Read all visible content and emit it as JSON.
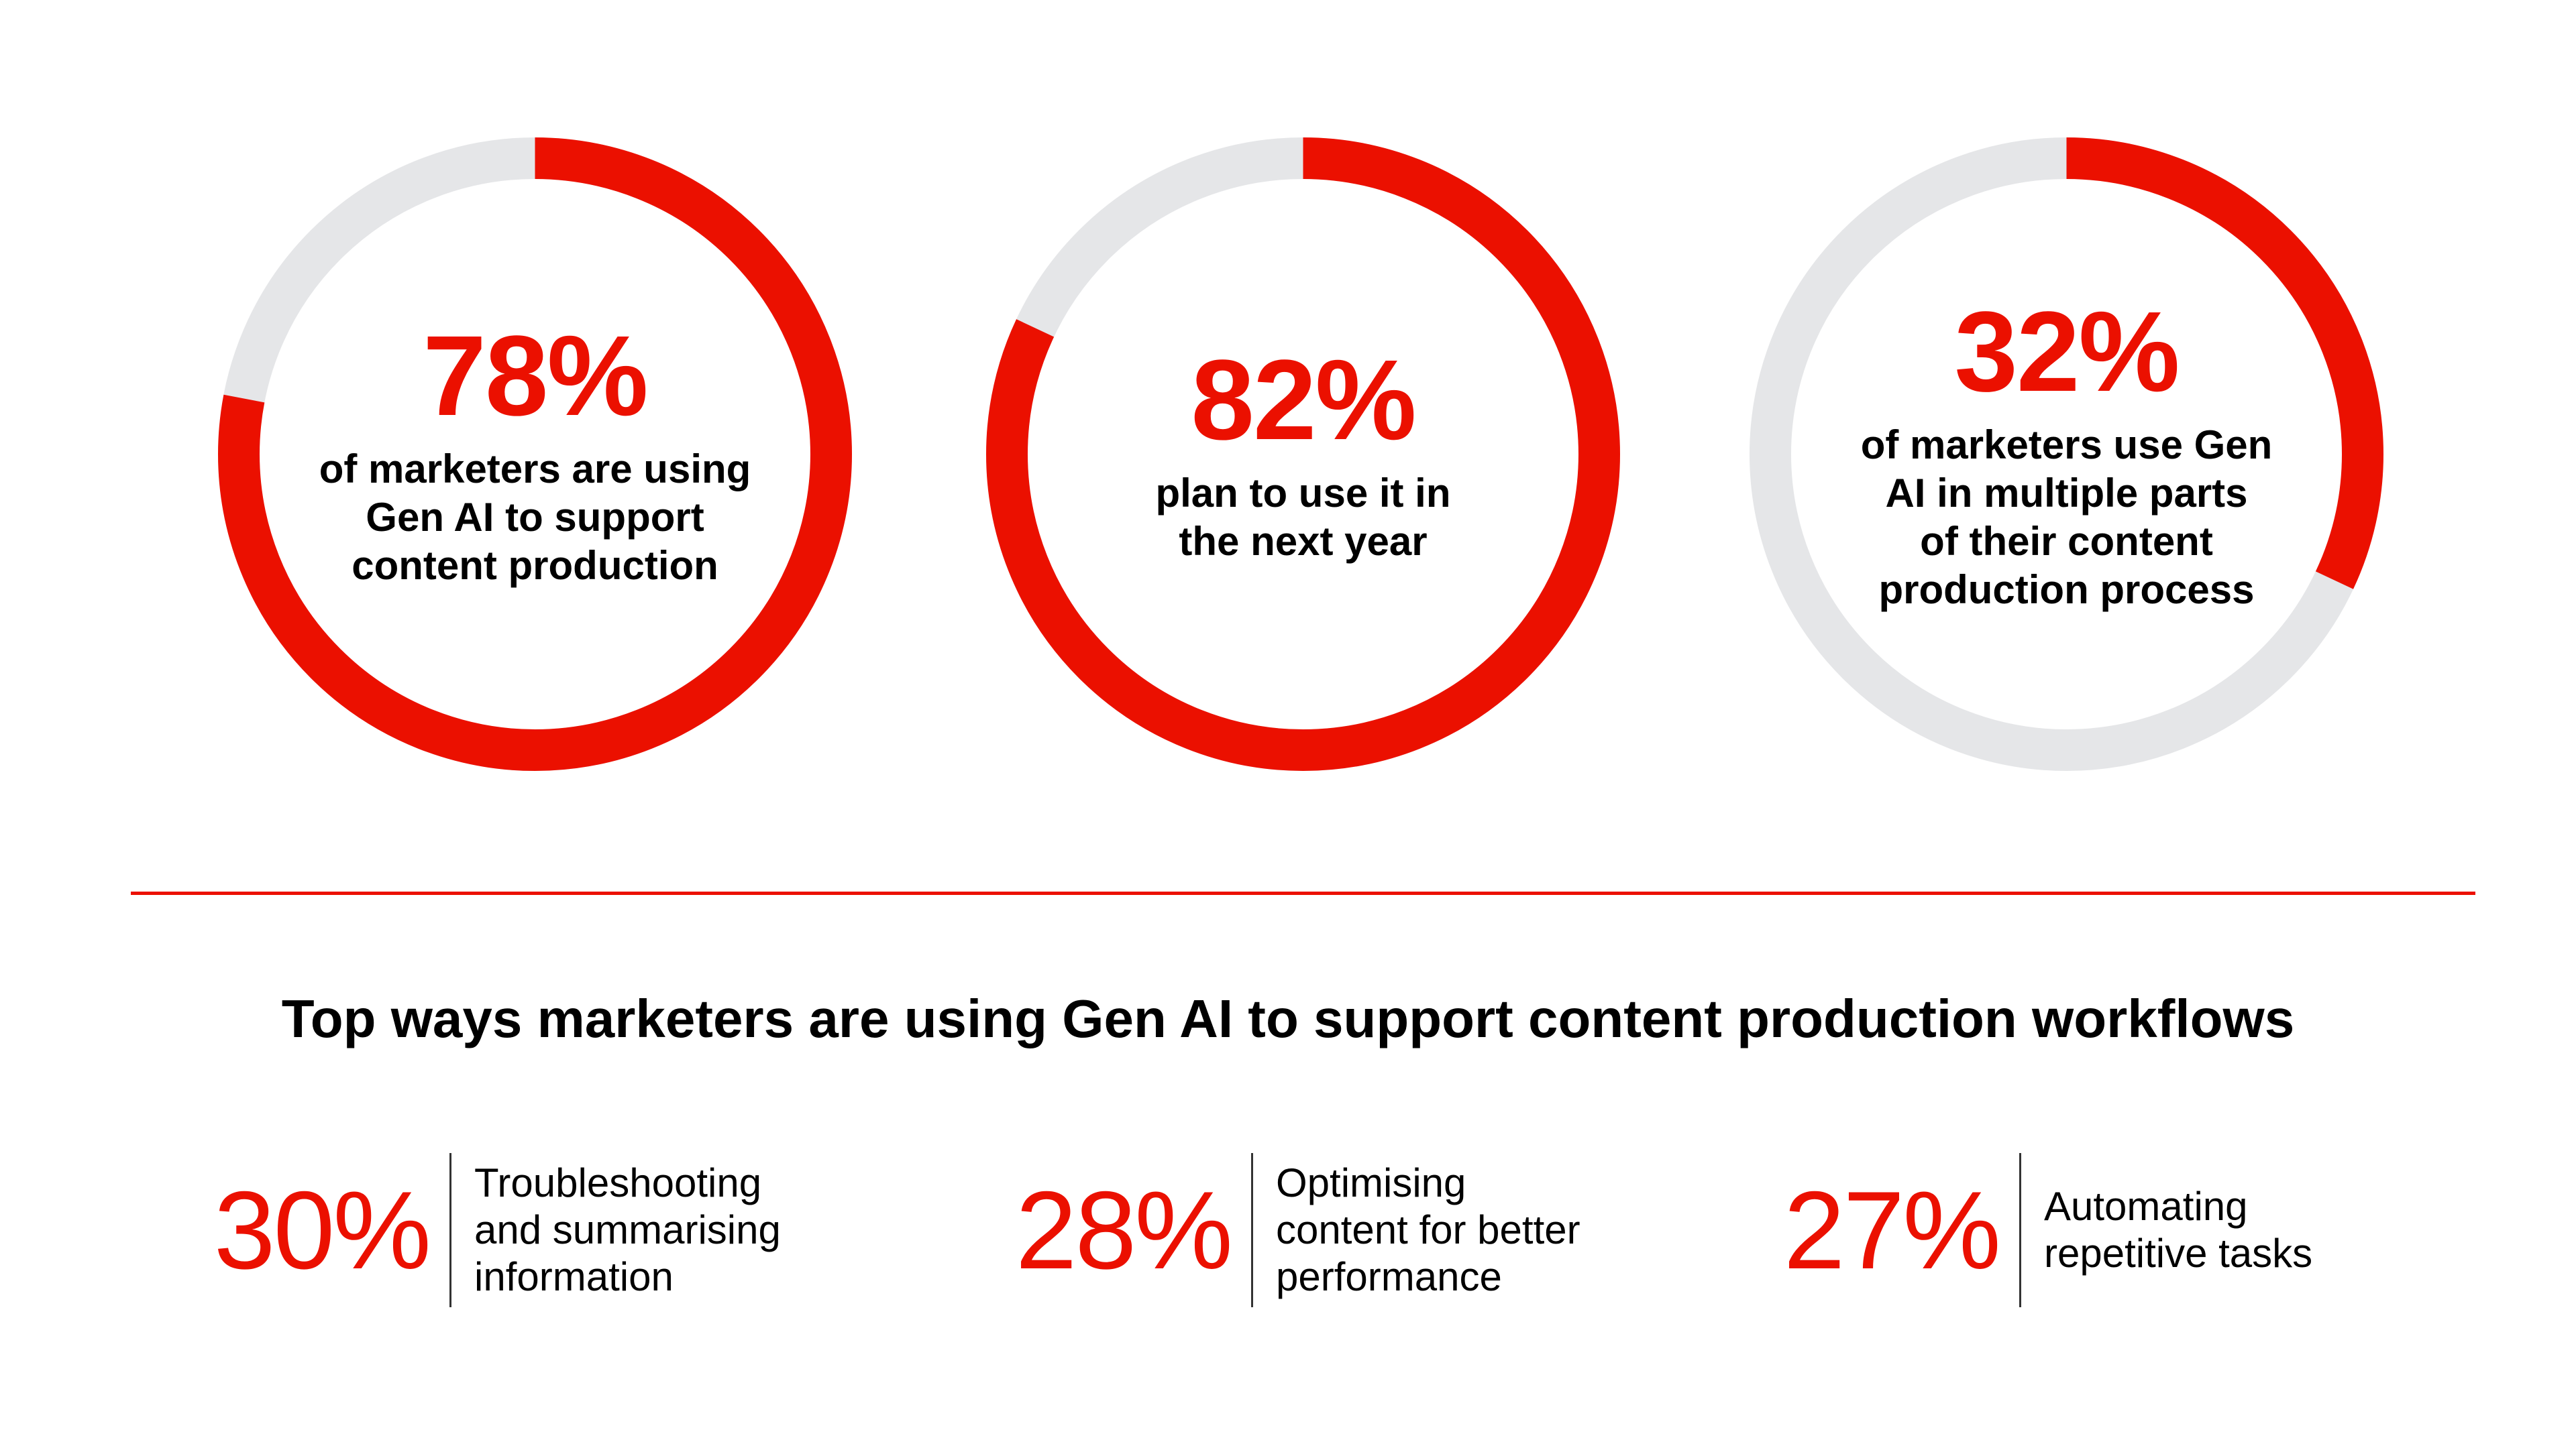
{
  "colors": {
    "accent": "#eb1000",
    "track": "#e5e6e8",
    "text": "#000000"
  },
  "chart_data": [
    {
      "type": "pie",
      "variant": "donut",
      "values": [
        78,
        22
      ],
      "labels": [
        "78%",
        ""
      ],
      "caption": "of marketers are using\nGen AI to support\ncontent production"
    },
    {
      "type": "pie",
      "variant": "donut",
      "values": [
        82,
        18
      ],
      "labels": [
        "82%",
        ""
      ],
      "caption": "plan to use it in\nthe next year"
    },
    {
      "type": "pie",
      "variant": "donut",
      "values": [
        32,
        68
      ],
      "labels": [
        "32%",
        ""
      ],
      "caption": "of marketers use Gen\nAI in multiple parts\nof their content\nproduction process"
    }
  ],
  "section": {
    "title": "Top ways marketers are using Gen AI to support content production workflows"
  },
  "stats": [
    {
      "value": "30%",
      "label": "Troubleshooting\nand summarising\ninformation"
    },
    {
      "value": "28%",
      "label": "Optimising\ncontent for better\nperformance"
    },
    {
      "value": "27%",
      "label": "Automating\nrepetitive tasks"
    }
  ]
}
